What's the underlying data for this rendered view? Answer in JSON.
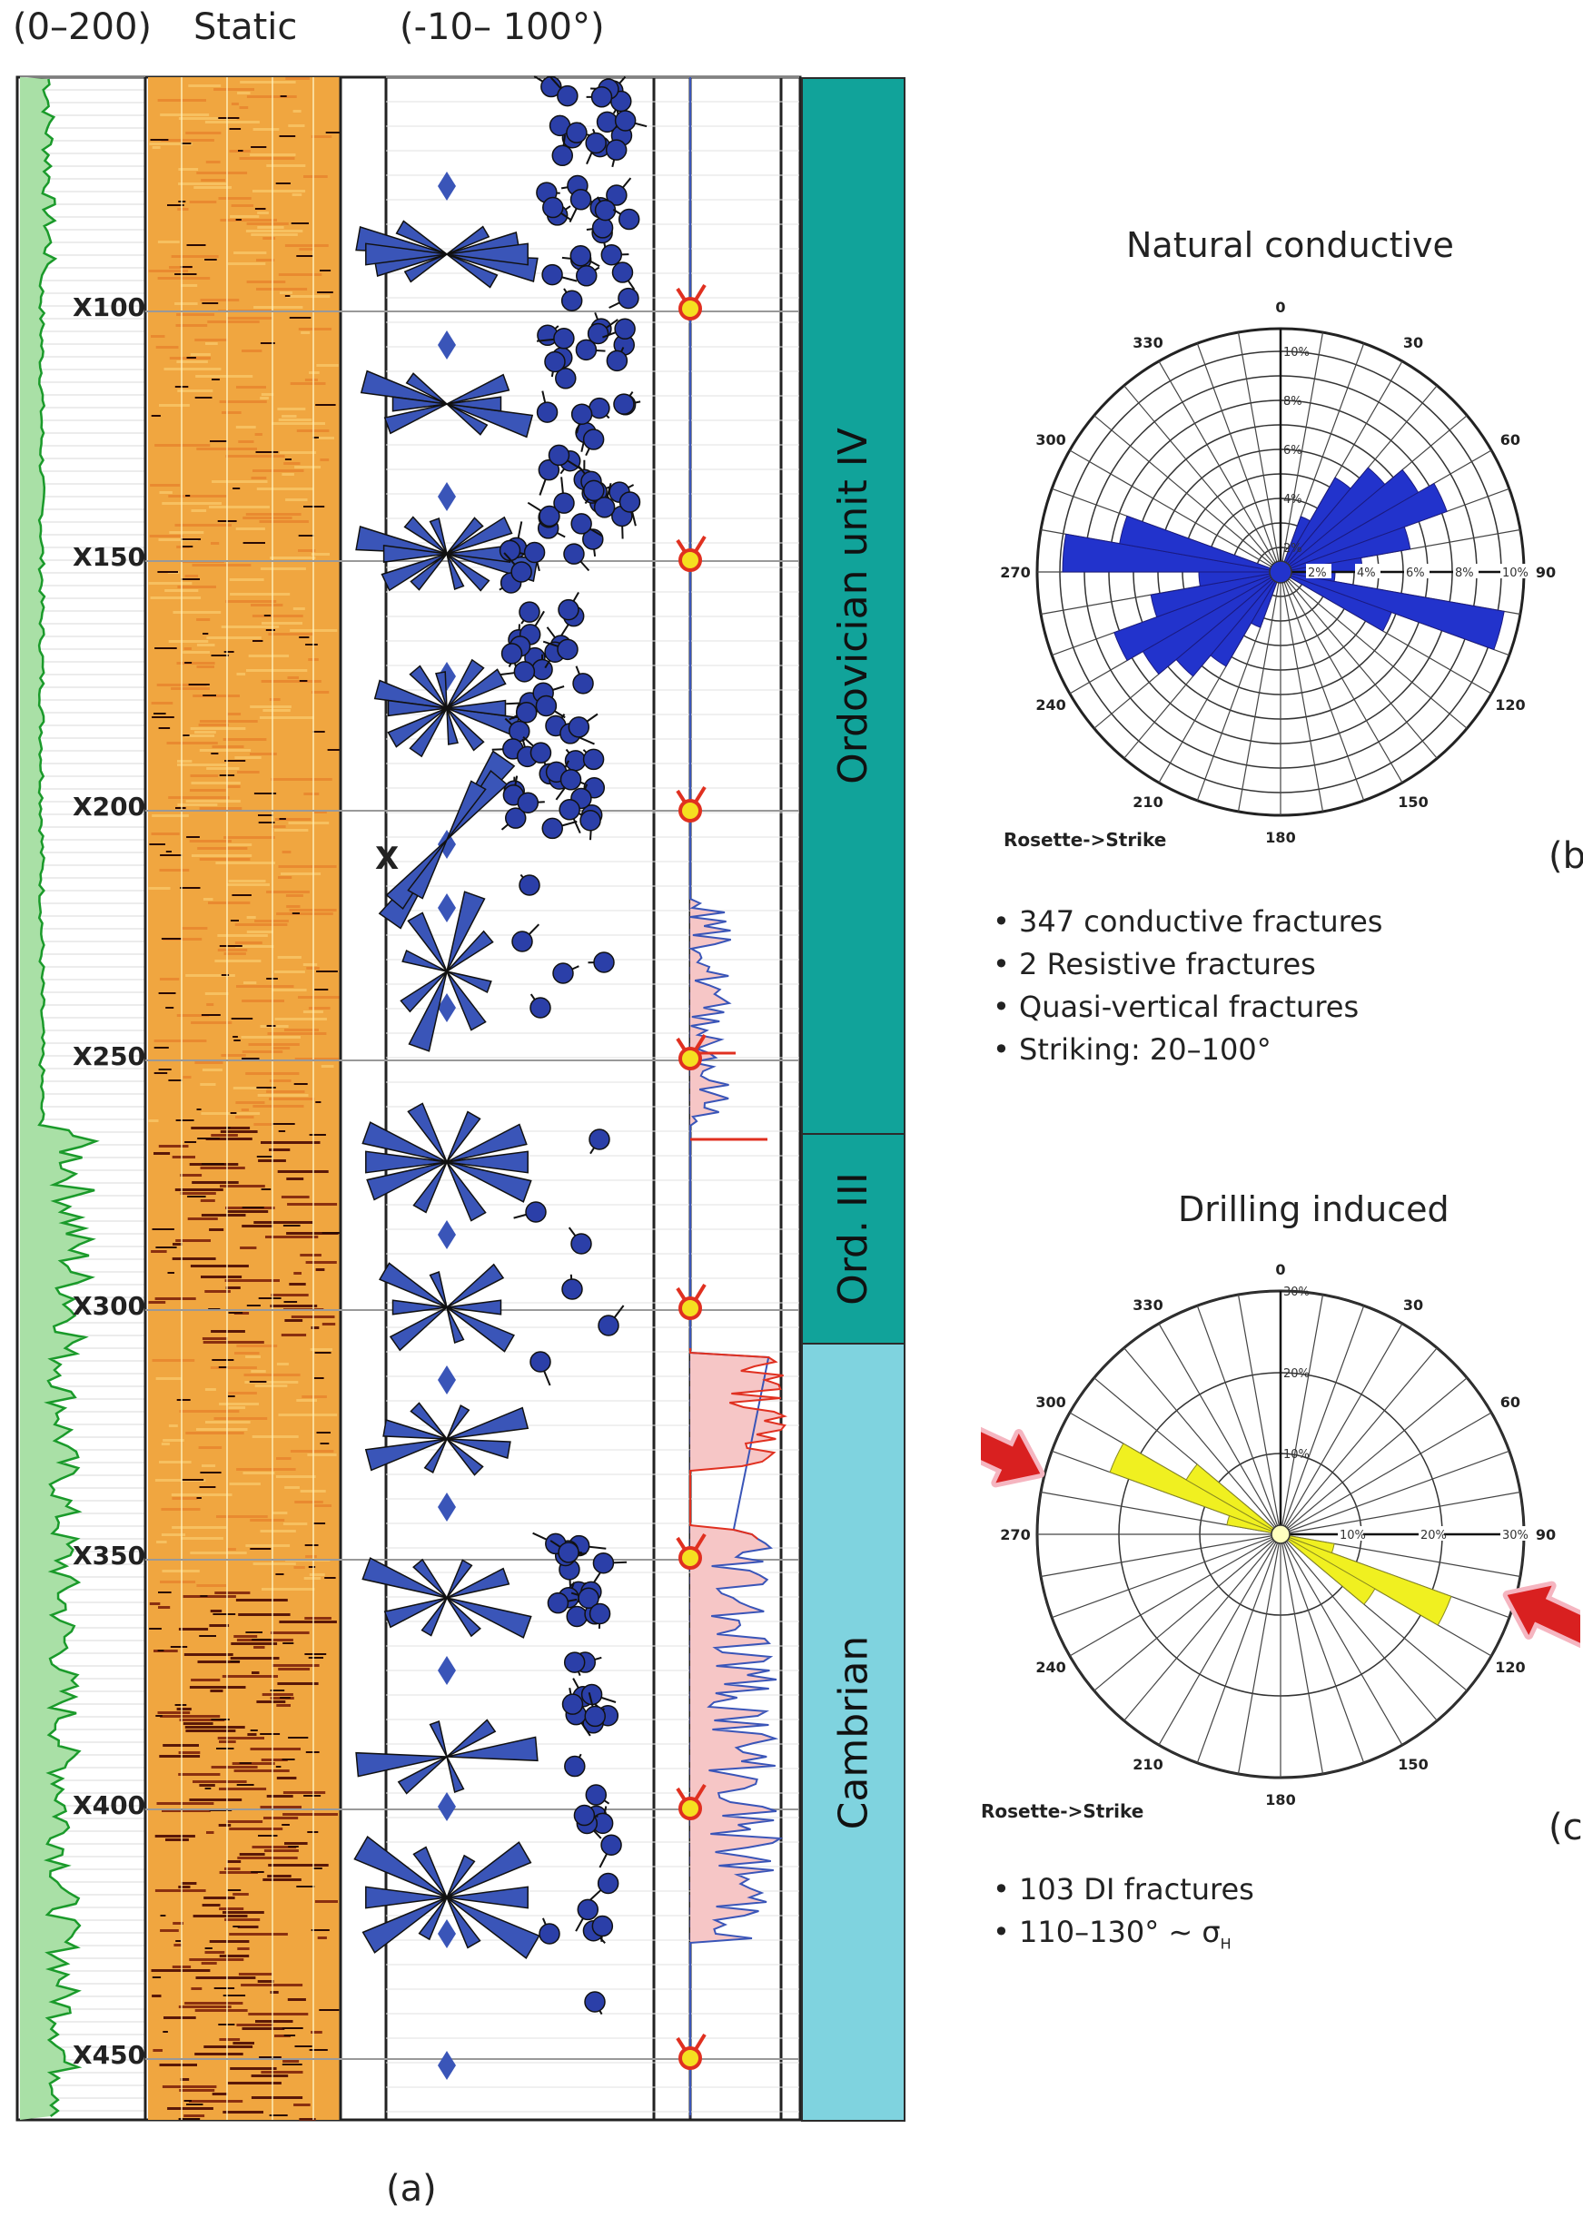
{
  "header": {
    "gr_range": "(0–200)",
    "static_label": "Static",
    "dip_range": "(-10– 100°)"
  },
  "depths": [
    "X100",
    "X150",
    "X200",
    "X250",
    "X300",
    "X350",
    "X400",
    "X450"
  ],
  "x_marker": "X",
  "units": [
    {
      "label": "Ordovician unit IV",
      "color": "#11a39a"
    },
    {
      "label": "Ord. III",
      "color": "#11a39a"
    },
    {
      "label": "Cambrian",
      "color": "#7fd3df"
    }
  ],
  "panel_labels": {
    "a": "(a)",
    "b": "(b",
    "c": "(c"
  },
  "rose_b": {
    "title": "Natural conductive",
    "caption": "Rosette->Strike",
    "angles": [
      "0",
      "30",
      "60",
      "90",
      "120",
      "150",
      "180",
      "210",
      "240",
      "270",
      "300",
      "330"
    ],
    "radial_vertical": [
      "10%",
      "8%",
      "6%",
      "4%",
      "2%"
    ],
    "radial_horizontal": [
      "2%",
      "4%",
      "6%",
      "8%",
      "10%"
    ],
    "fill": "#2233cc"
  },
  "rose_c": {
    "title": "Drilling induced",
    "caption": "Rosette->Strike",
    "angles": [
      "0",
      "30",
      "60",
      "90",
      "120",
      "150",
      "180",
      "210",
      "240",
      "270",
      "300",
      "330"
    ],
    "radial_vertical": [
      "30%",
      "20%",
      "10%"
    ],
    "radial_horizontal": [
      "10%",
      "20%",
      "30%"
    ],
    "fill": "#f0f020"
  },
  "bullets_b": [
    "347 conductive fractures",
    "2 Resistive fractures",
    "Quasi-vertical fractures",
    "Striking: 20–100°"
  ],
  "bullets_c": [
    "103 DI fractures",
    "110–130° ~ σ"
  ],
  "sigma_sub": "H",
  "colors": {
    "gamma": "#1a9a2a",
    "tadpole": "#2b3fa8",
    "rose_log": "#3a55b8",
    "resistive": "#e03020",
    "stress_marker": "#f5e020"
  }
}
